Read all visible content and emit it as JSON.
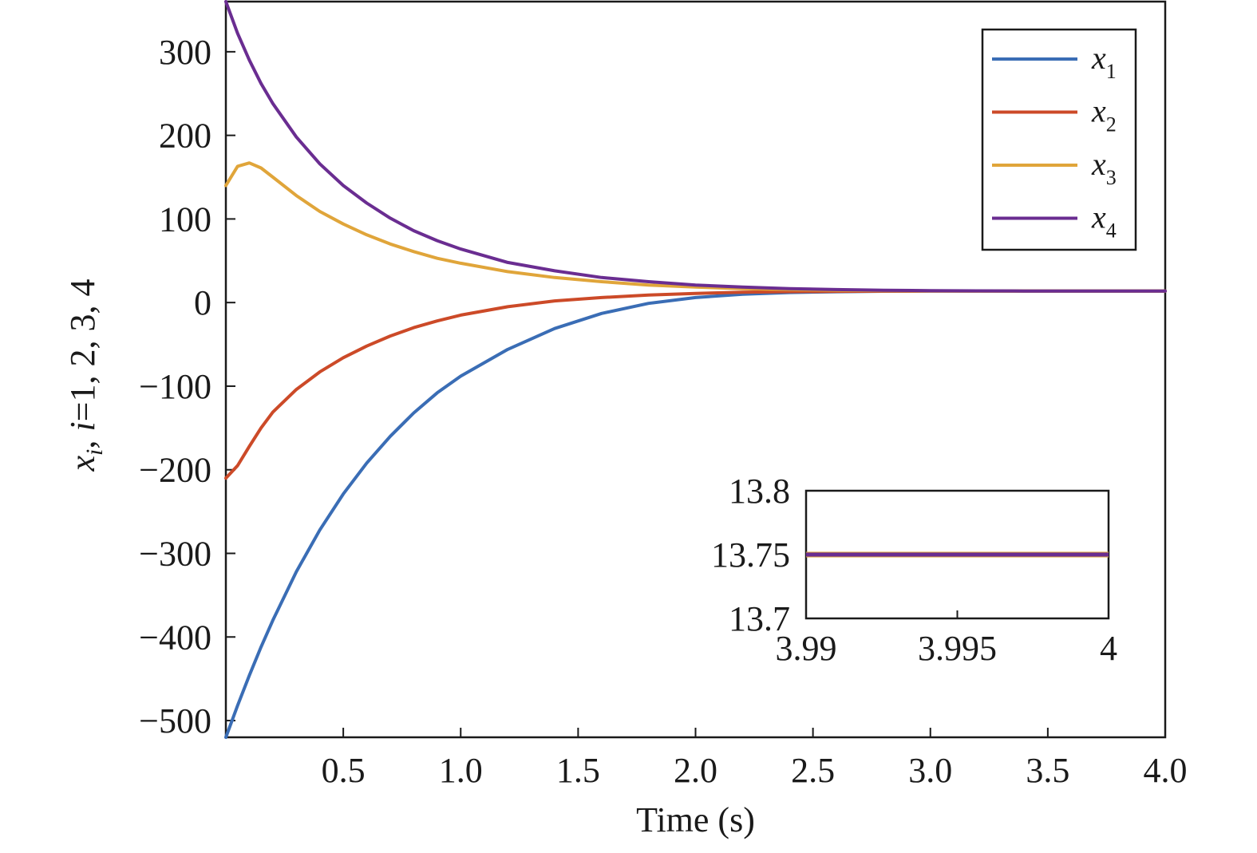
{
  "chart_data": [
    {
      "type": "line",
      "xlabel": "Time (s)",
      "ylabel": {
        "var": "x",
        "sub": "i",
        "rest": ", ",
        "idx": "i",
        "eq": "=1, 2, 3, 4"
      },
      "xlim": [
        0,
        4.0
      ],
      "ylim": [
        -520,
        360
      ],
      "x_ticks": [
        0.5,
        1.0,
        1.5,
        2.0,
        2.5,
        3.0,
        3.5,
        4.0
      ],
      "x_tick_labels": [
        "0.5",
        "1.0",
        "1.5",
        "2.0",
        "2.5",
        "3.0",
        "3.5",
        "4.0"
      ],
      "y_ticks": [
        300,
        200,
        100,
        0,
        -100,
        -200,
        -300,
        -400,
        -500
      ],
      "y_tick_labels": [
        "300",
        "200",
        "100",
        "0",
        "−100",
        "−200",
        "−300",
        "−400",
        "−500"
      ],
      "grid": false,
      "legend_position": "top-right",
      "x": [
        0,
        0.05,
        0.1,
        0.15,
        0.2,
        0.3,
        0.4,
        0.5,
        0.6,
        0.7,
        0.8,
        0.9,
        1.0,
        1.2,
        1.4,
        1.6,
        1.8,
        2.0,
        2.2,
        2.4,
        2.6,
        2.8,
        3.0,
        3.2,
        3.4,
        3.6,
        3.8,
        4.0
      ],
      "series": [
        {
          "name": "x1",
          "label_main": "x",
          "label_sub": "1",
          "color": "#3a6db5",
          "values": [
            -520,
            -482,
            -446,
            -412,
            -380,
            -322,
            -272,
            -229,
            -192,
            -160,
            -132,
            -108,
            -88,
            -56,
            -31,
            -13,
            -1,
            6,
            10,
            12,
            13,
            13.5,
            13.7,
            13.75,
            13.75,
            13.75,
            13.75,
            13.75
          ]
        },
        {
          "name": "x2",
          "label_main": "x",
          "label_sub": "2",
          "color": "#cc4a28",
          "values": [
            -210,
            -195,
            -172,
            -150,
            -131,
            -104,
            -83,
            -66,
            -52,
            -40,
            -30,
            -22,
            -15,
            -5,
            2,
            6,
            9,
            11,
            12.4,
            13.1,
            13.4,
            13.6,
            13.7,
            13.75,
            13.75,
            13.75,
            13.75,
            13.75
          ]
        },
        {
          "name": "x3",
          "label_main": "x",
          "label_sub": "3",
          "color": "#e0a53a",
          "values": [
            140,
            163,
            167,
            161,
            150,
            128,
            109,
            94,
            81,
            70,
            61,
            53,
            47,
            37,
            30,
            25,
            21,
            18.5,
            16.7,
            15.5,
            14.8,
            14.3,
            14.0,
            13.85,
            13.78,
            13.76,
            13.75,
            13.75
          ]
        },
        {
          "name": "x4",
          "label_main": "x",
          "label_sub": "4",
          "color": "#6a2d91",
          "values": [
            360,
            322,
            290,
            262,
            238,
            198,
            166,
            140,
            119,
            101,
            86,
            74,
            64,
            48,
            38,
            30,
            25,
            21,
            18.5,
            16.7,
            15.5,
            14.8,
            14.3,
            14.0,
            13.85,
            13.78,
            13.76,
            13.75
          ]
        }
      ]
    },
    {
      "type": "line",
      "role": "inset",
      "xlim": [
        3.99,
        4.0
      ],
      "ylim": [
        13.7,
        13.8
      ],
      "x_ticks": [
        3.99,
        3.995,
        4.0
      ],
      "x_tick_labels": [
        "3.99",
        "3.995",
        "4"
      ],
      "y_ticks": [
        13.8,
        13.75,
        13.7
      ],
      "y_tick_labels": [
        "13.8",
        "13.75",
        "13.7"
      ],
      "x": [
        3.99,
        4.0
      ],
      "series": [
        {
          "name": "x1",
          "color": "#3a6db5",
          "values": [
            13.75,
            13.75
          ]
        },
        {
          "name": "x2",
          "color": "#cc4a28",
          "values": [
            13.75,
            13.75
          ]
        },
        {
          "name": "x3",
          "color": "#e0a53a",
          "values": [
            13.75,
            13.75
          ]
        },
        {
          "name": "x4",
          "color": "#6a2d91",
          "values": [
            13.75,
            13.75
          ]
        }
      ]
    }
  ]
}
